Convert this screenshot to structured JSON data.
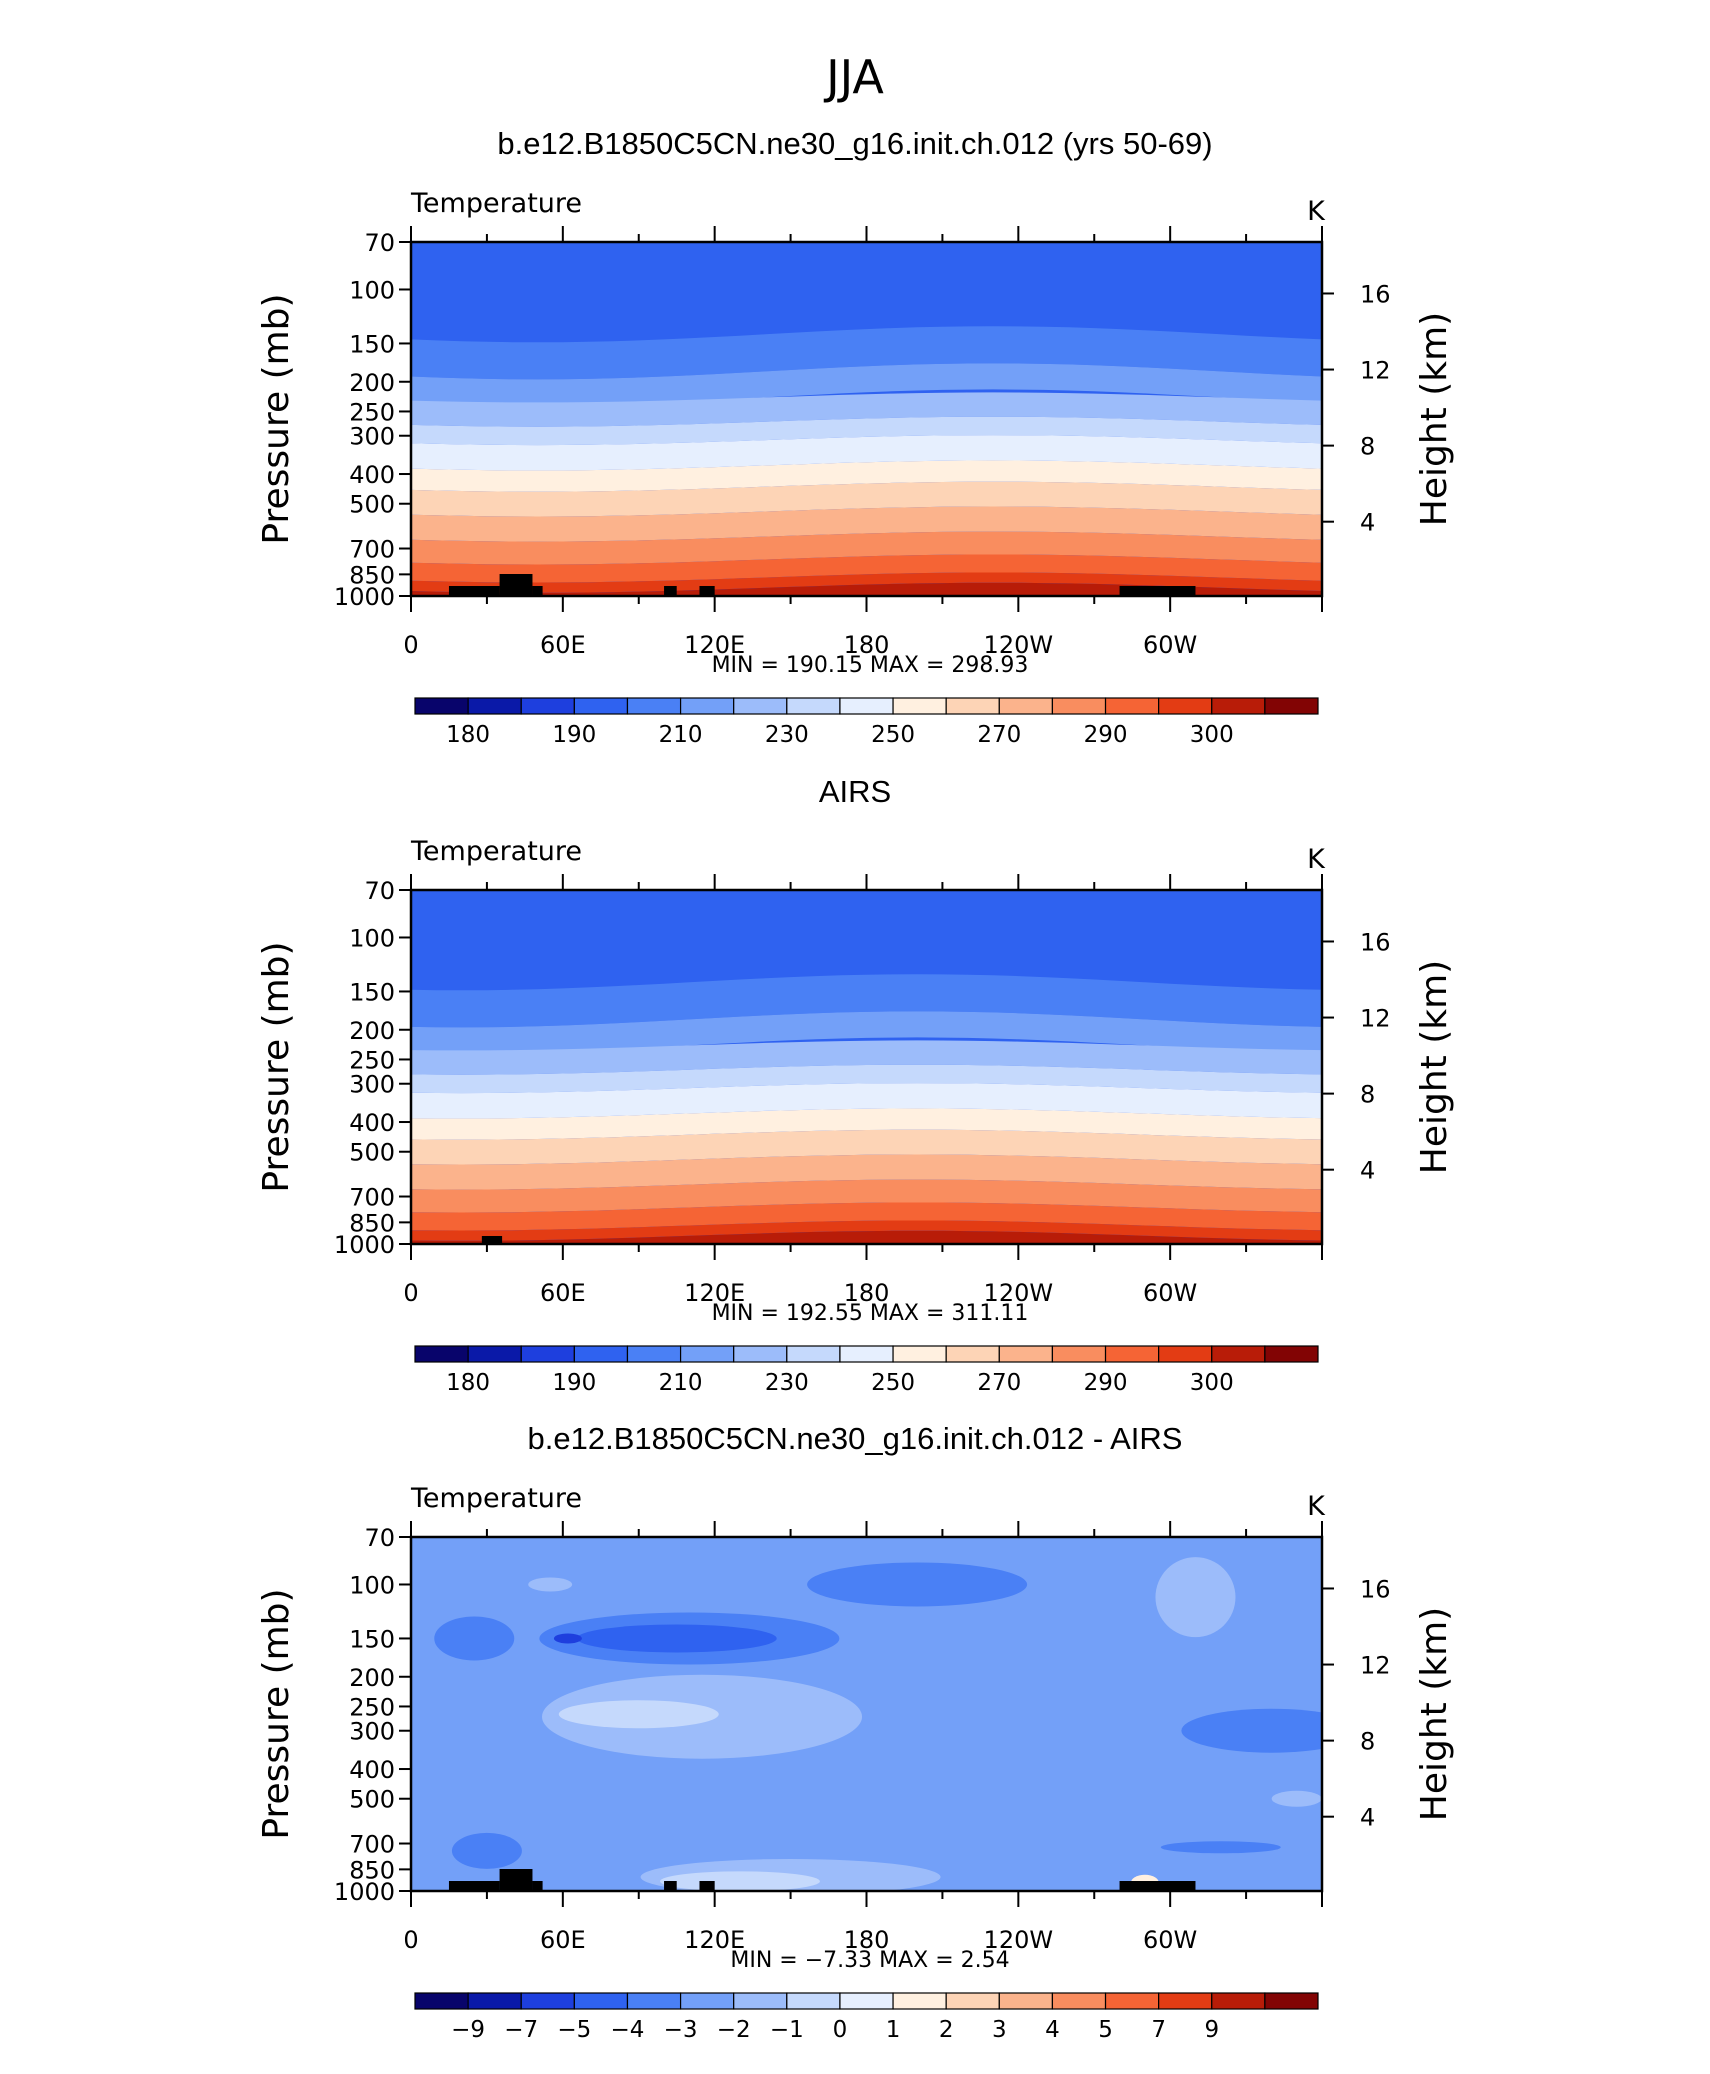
{
  "page_title": "JJA",
  "chart_data": [
    {
      "type": "heatmap",
      "title": "b.e12.B1850C5CN.ne30_g16.init.ch.012 (yrs 50-69)",
      "left_label": "Temperature",
      "units": "K",
      "ylabel": "Pressure  (mb)",
      "right_ylabel": "Height  (km)",
      "xticks": [
        "0",
        "60E",
        "120E",
        "180",
        "120W",
        "60W"
      ],
      "yticks": [
        "70",
        "100",
        "150",
        "200",
        "250",
        "300",
        "400",
        "500",
        "700",
        "850",
        "1000"
      ],
      "right_ticks": [
        "16",
        "12",
        "8",
        "4"
      ],
      "min_max": "MIN =  190.15   MAX =  298.93",
      "min": 190.15,
      "max": 298.93,
      "colorbar_ticks": [
        "180",
        "190",
        "210",
        "230",
        "250",
        "270",
        "290",
        "300"
      ],
      "colorbar_colors": [
        "#08046b",
        "#0a19a8",
        "#1e3fde",
        "#2f62f0",
        "#4a80f5",
        "#73a0f8",
        "#9cbcfa",
        "#c5d9fc",
        "#e6effe",
        "#fff0e0",
        "#fdd4b6",
        "#fbb38c",
        "#f98d5f",
        "#f56435",
        "#e33c14",
        "#b81c08",
        "#820404"
      ]
    },
    {
      "type": "heatmap",
      "title": "AIRS",
      "left_label": "Temperature",
      "units": "K",
      "ylabel": "Pressure  (mb)",
      "right_ylabel": "Height  (km)",
      "xticks": [
        "0",
        "60E",
        "120E",
        "180",
        "120W",
        "60W"
      ],
      "yticks": [
        "70",
        "100",
        "150",
        "200",
        "250",
        "300",
        "400",
        "500",
        "700",
        "850",
        "1000"
      ],
      "right_ticks": [
        "16",
        "12",
        "8",
        "4"
      ],
      "min_max": "MIN =  192.55   MAX =  311.11",
      "min": 192.55,
      "max": 311.11,
      "colorbar_ticks": [
        "180",
        "190",
        "210",
        "230",
        "250",
        "270",
        "290",
        "300"
      ],
      "colorbar_colors": [
        "#08046b",
        "#0a19a8",
        "#1e3fde",
        "#2f62f0",
        "#4a80f5",
        "#73a0f8",
        "#9cbcfa",
        "#c5d9fc",
        "#e6effe",
        "#fff0e0",
        "#fdd4b6",
        "#fbb38c",
        "#f98d5f",
        "#f56435",
        "#e33c14",
        "#b81c08",
        "#820404"
      ]
    },
    {
      "type": "heatmap",
      "title": "b.e12.B1850C5CN.ne30_g16.init.ch.012 - AIRS",
      "left_label": "Temperature",
      "units": "K",
      "ylabel": "Pressure  (mb)",
      "right_ylabel": "Height  (km)",
      "xticks": [
        "0",
        "60E",
        "120E",
        "180",
        "120W",
        "60W"
      ],
      "yticks": [
        "70",
        "100",
        "150",
        "200",
        "250",
        "300",
        "400",
        "500",
        "700",
        "850",
        "1000"
      ],
      "right_ticks": [
        "16",
        "12",
        "8",
        "4"
      ],
      "min_max": "MIN =   −7.33   MAX =     2.54",
      "min": -7.33,
      "max": 2.54,
      "colorbar_ticks": [
        "−9",
        "−7",
        "−5",
        "−4",
        "−3",
        "−2",
        "−1",
        "0",
        "1",
        "2",
        "3",
        "4",
        "5",
        "7",
        "9"
      ],
      "colorbar_colors": [
        "#08046b",
        "#0a19a8",
        "#1e3fde",
        "#2f62f0",
        "#4a80f5",
        "#73a0f8",
        "#9cbcfa",
        "#c5d9fc",
        "#e6effe",
        "#fff0e0",
        "#fdd4b6",
        "#fbb38c",
        "#f98d5f",
        "#f56435",
        "#e33c14",
        "#b81c08",
        "#820404"
      ]
    }
  ]
}
